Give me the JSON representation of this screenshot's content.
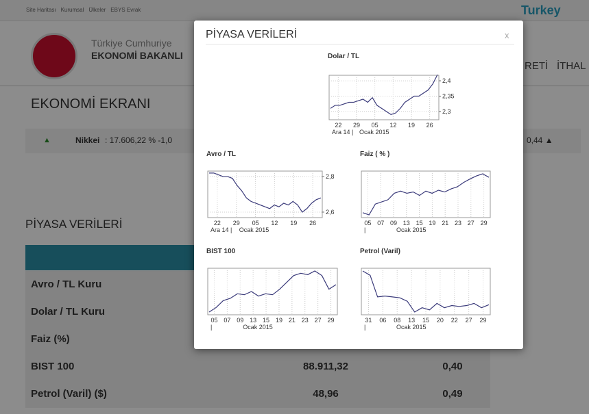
{
  "nav": {
    "links": [
      "Site Haritası",
      "Kurumsal",
      "Ülkeler",
      "EBYS Evrak"
    ],
    "brand": "Turkey",
    "org1": "Türkiye Cumhuriye",
    "org2": "EKONOMİ BAKANLI",
    "menu": [
      "RETİ",
      "İTHAL"
    ]
  },
  "page_title": "EKONOMİ EKRANI",
  "ticker": {
    "arrow_left": "▲",
    "name": "Nikkei",
    "rest": ": 17.606,22  % -1,0",
    "right": "0,44 ▲"
  },
  "table": {
    "title": "PİYASA VERİLERİ",
    "rows": [
      [
        "Avro / TL Kuru"
      ],
      [
        "Dolar / TL Kuru"
      ],
      [
        "Faiz (%)"
      ],
      [
        "BIST 100",
        "88.911,32",
        "0,40"
      ],
      [
        "Petrol (Varil) ($)",
        "48,96",
        "0,49"
      ]
    ]
  },
  "modal": {
    "title": "PİYASA VERİLERİ",
    "close": "x",
    "charts": [
      {
        "type": "line",
        "title": "Dolar / TL",
        "values": [
          2.31,
          2.32,
          2.32,
          2.325,
          2.33,
          2.33,
          2.335,
          2.34,
          2.33,
          2.345,
          2.32,
          2.31,
          2.3,
          2.29,
          2.295,
          2.31,
          2.33,
          2.34,
          2.35,
          2.35,
          2.36,
          2.37,
          2.39,
          2.42
        ],
        "ylim": [
          2.273,
          2.418
        ],
        "yticks": [
          {
            "value": 2.4,
            "label": "2,4"
          },
          {
            "value": 2.35,
            "label": "2,35"
          },
          {
            "value": 2.3,
            "label": "2,3"
          }
        ],
        "xlabels": [
          "22",
          "29",
          "05",
          "12",
          "19",
          "26"
        ],
        "xsub": [
          "Ara 14 |",
          "Ocak 2015"
        ]
      },
      {
        "type": "line",
        "title": "Avro / TL",
        "values": [
          2.82,
          2.82,
          2.81,
          2.8,
          2.8,
          2.79,
          2.75,
          2.72,
          2.68,
          2.66,
          2.65,
          2.64,
          2.63,
          2.62,
          2.64,
          2.63,
          2.65,
          2.64,
          2.66,
          2.64,
          2.6,
          2.62,
          2.65,
          2.67,
          2.68
        ],
        "ylim": [
          2.569,
          2.831
        ],
        "yticks": [
          {
            "value": 2.8,
            "label": "2,8"
          },
          {
            "value": 2.6,
            "label": "2,6"
          }
        ],
        "xlabels": [
          "22",
          "29",
          "05",
          "12",
          "19",
          "26"
        ],
        "xsub": [
          "Ara 14 |",
          "Ocak 2015"
        ]
      },
      {
        "type": "line",
        "title": "Faiz ( % )",
        "values": [
          10,
          5,
          30,
          35,
          40,
          55,
          60,
          55,
          58,
          50,
          60,
          55,
          62,
          58,
          65,
          70,
          80,
          88,
          95,
          100,
          92
        ],
        "xlabels": [
          "05",
          "07",
          "09",
          "13",
          "15",
          "19",
          "21",
          "23",
          "27",
          "29"
        ],
        "xsub": [
          "|",
          "Ocak 2015"
        ]
      },
      {
        "type": "line",
        "title": "BIST 100",
        "values": [
          10,
          20,
          35,
          40,
          50,
          48,
          55,
          45,
          50,
          48,
          60,
          75,
          90,
          95,
          92,
          100,
          90,
          60,
          70
        ],
        "xlabels": [
          "05",
          "07",
          "09",
          "13",
          "15",
          "19",
          "21",
          "23",
          "27",
          "29"
        ],
        "xsub": [
          "|",
          "Ocak 2015"
        ]
      },
      {
        "type": "line",
        "title": "Petrol (Varil)",
        "values": [
          100,
          90,
          40,
          42,
          40,
          38,
          30,
          5,
          15,
          10,
          25,
          15,
          20,
          18,
          20,
          25,
          15,
          22
        ],
        "xlabels": [
          "31",
          "06",
          "08",
          "13",
          "15",
          "20",
          "22",
          "27",
          "29"
        ],
        "xsub": [
          "|",
          "Ocak 2015"
        ]
      }
    ]
  }
}
